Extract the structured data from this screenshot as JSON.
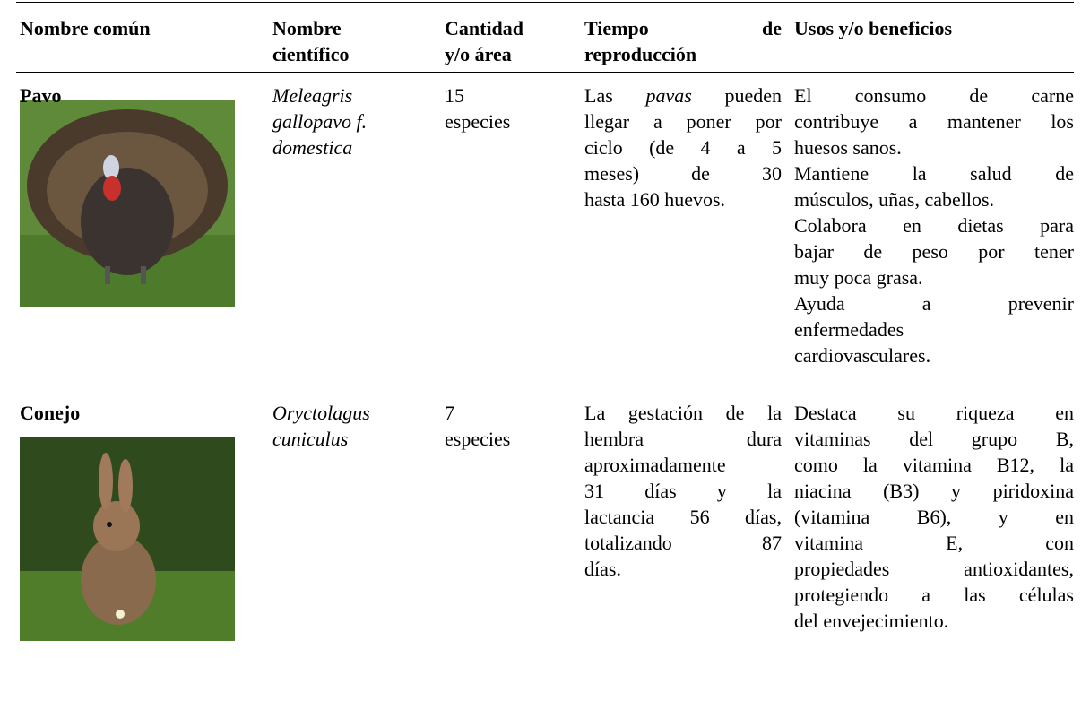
{
  "table": {
    "header": [
      {
        "lines": [
          "Nombre común"
        ]
      },
      {
        "lines": [
          "Nombre",
          "científico"
        ]
      },
      {
        "lines": [
          "Cantidad",
          "y/o área"
        ]
      },
      {
        "lines": [
          "Tiempo de",
          "reproducción"
        ],
        "justify": true
      },
      {
        "lines": [
          "Usos y/o beneficios"
        ]
      }
    ],
    "rows": [
      {
        "name": "Pavo",
        "scientific": [
          "Meleagris",
          "gallopavo f.",
          "domestica"
        ],
        "quantity": [
          "15",
          "especies"
        ],
        "reproduction": [
          [
            {
              "runs": [
                {
                  "text": "Las "
                },
                {
                  "text": "pavas",
                  "italic": true
                },
                {
                  "text": " pueden"
                }
              ]
            },
            "llegar a poner por",
            "ciclo (de 4 a 5",
            "meses) de 30",
            "hasta 160 huevos."
          ]
        ],
        "uses": [
          [
            "El consumo de carne",
            "contribuye a mantener los",
            "huesos sanos."
          ],
          [
            "Mantiene la salud de",
            "músculos, uñas, cabellos."
          ],
          [
            "Colabora en dietas para",
            "bajar de peso por tener",
            "muy poca grasa."
          ],
          [
            "Ayuda a prevenir",
            "enfermedades",
            "cardiovasculares."
          ]
        ]
      },
      {
        "name": "Conejo",
        "scientific": [
          "Oryctolagus",
          "cuniculus"
        ],
        "quantity": [
          "7",
          "especies"
        ],
        "reproduction": [
          [
            "La gestación de la",
            "hembra dura",
            "aproximadamente",
            "31 días y la",
            "lactancia 56 días,",
            "totalizando 87",
            "días."
          ]
        ],
        "uses": [
          [
            "Destaca su riqueza en",
            "vitaminas del grupo B,",
            "como la vitamina B12, la",
            "niacina (B3) y piridoxina",
            "(vitamina B6), y en",
            "vitamina E, con",
            "propiedades antioxidantes,",
            "protegiendo a las células",
            "del envejecimiento."
          ]
        ]
      }
    ]
  }
}
